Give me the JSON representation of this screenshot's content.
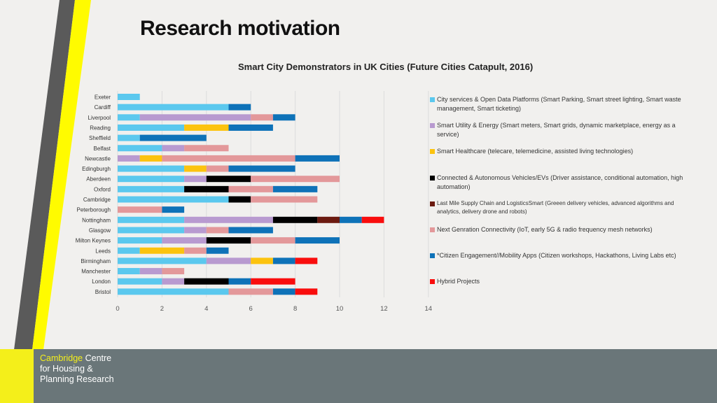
{
  "slide": {
    "title": "Research motivation",
    "subtitle": "Smart City Demonstrators in UK Cities (Future Cities Catapult, 2016)"
  },
  "footer": {
    "logo_accent": "Cambridge",
    "logo_line1_rest": " Centre",
    "logo_line2": "for Housing &",
    "logo_line3": "Planning Research",
    "bg_color": "#6a7679",
    "accent_color": "#f4ef1a"
  },
  "chart_data": {
    "type": "bar",
    "orientation": "horizontal",
    "stacked": true,
    "title": "Smart City Demonstrators in UK Cities (Future Cities Catapult, 2016)",
    "categories": [
      "Exeter",
      "Cardiff",
      "Liverpool",
      "Reading",
      "Sheffield",
      "Belfast",
      "Newcastle",
      "Edingburgh",
      "Aberdeen",
      "Oxford",
      "Cambridge",
      "Peterborough",
      "Nottingham",
      "Glasgow",
      "Milton Keynes",
      "Leeds",
      "Birmingham",
      "Manchester",
      "London",
      "Bristol"
    ],
    "xlim": [
      0,
      14
    ],
    "xticks": [
      0,
      2,
      4,
      6,
      8,
      10,
      12,
      14
    ],
    "grid": true,
    "legend_position": "right",
    "series": [
      {
        "name": "City services & Open Data Platforms (Smart Parking, Smart street lighting, Smart waste management, Smart ticketing)",
        "color": "#5bc8ee",
        "values": [
          1,
          5,
          1,
          3,
          1,
          2,
          0,
          3,
          3,
          3,
          5,
          0,
          3,
          3,
          2,
          1,
          4,
          1,
          2,
          5
        ]
      },
      {
        "name": "Smart Utility & Energy (Smart meters, Smart grids, dynamic marketplace, energy as a service)",
        "color": "#b89ad0",
        "values": [
          0,
          0,
          5,
          0,
          0,
          1,
          1,
          0,
          1,
          0,
          0,
          0,
          4,
          1,
          2,
          0,
          2,
          1,
          1,
          0
        ]
      },
      {
        "name": "Smart Healthcare (telecare, telemedicine, assisted living technologies)",
        "color": "#fcc30e",
        "values": [
          0,
          0,
          0,
          2,
          0,
          0,
          1,
          1,
          0,
          0,
          0,
          0,
          0,
          0,
          0,
          2,
          1,
          0,
          0,
          0
        ]
      },
      {
        "name": "Connected & Autonomous Vehicles/EVs  (Driver assistance, conditional automation, high automation)",
        "color": "#000000",
        "values": [
          0,
          0,
          0,
          0,
          0,
          0,
          0,
          0,
          2,
          2,
          1,
          0,
          2,
          0,
          2,
          0,
          0,
          0,
          2,
          0
        ]
      },
      {
        "name": "Last Mile Supply Chain and LogisticsSmart  (Greeen delivery vehicles, advanced algorithms and analytics, delivery drone and robots)",
        "color": "#6b1a10",
        "values": [
          0,
          0,
          0,
          0,
          0,
          0,
          0,
          0,
          0,
          0,
          0,
          0,
          1,
          0,
          0,
          0,
          0,
          0,
          0,
          0
        ]
      },
      {
        "name": "Next Genration Connectivity (IoT, early 5G & radio frequency mesh networks)",
        "color": "#e3989a",
        "values": [
          0,
          0,
          1,
          0,
          0,
          2,
          6,
          1,
          4,
          2,
          3,
          2,
          0,
          1,
          2,
          1,
          0,
          1,
          0,
          2
        ]
      },
      {
        "name": "*Citizen Engagement//Mobility Apps (Citizen workshops, Hackathons, Living Labs etc)",
        "color": "#0e72b8",
        "values": [
          0,
          1,
          1,
          2,
          3,
          0,
          2,
          3,
          0,
          2,
          0,
          1,
          1,
          2,
          2,
          1,
          1,
          0,
          1,
          1
        ]
      },
      {
        "name": "Hybrid Projects",
        "color": "#f90d0d",
        "values": [
          0,
          0,
          0,
          0,
          0,
          0,
          0,
          0,
          0,
          0,
          0,
          0,
          1,
          0,
          0,
          0,
          1,
          0,
          2,
          1
        ]
      }
    ]
  }
}
